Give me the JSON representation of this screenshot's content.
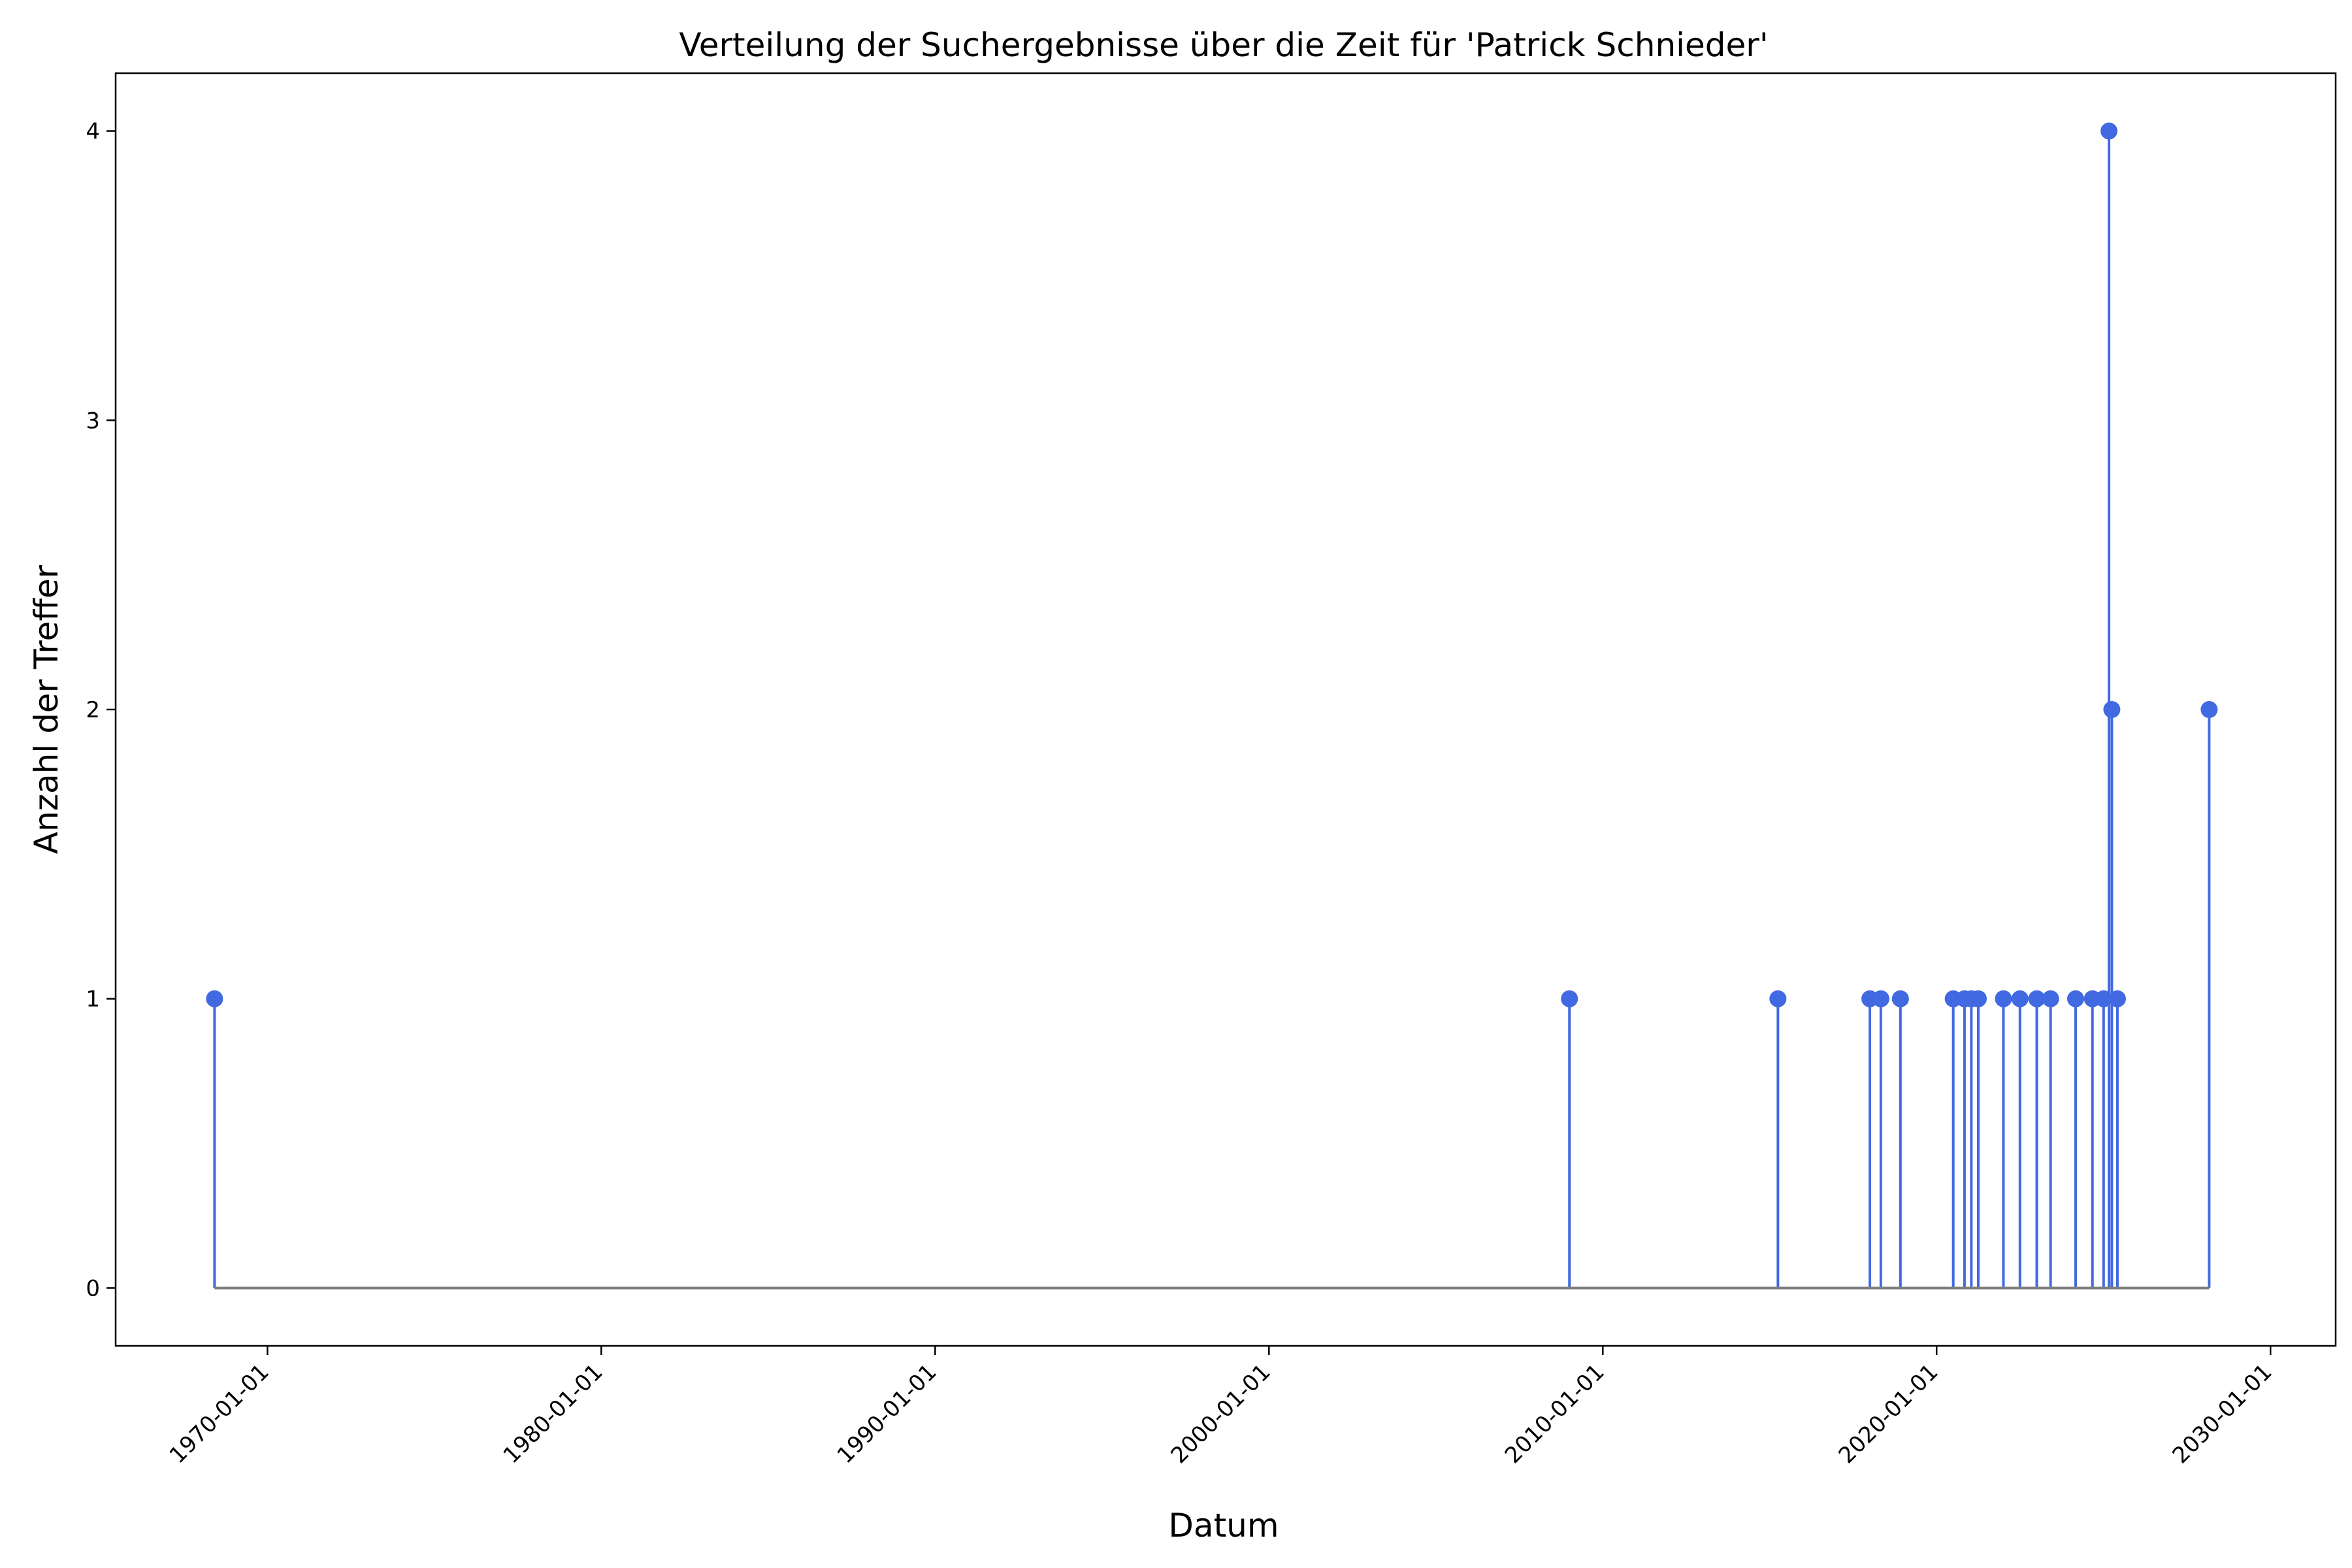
{
  "chart_data": {
    "type": "stem",
    "title": "Verteilung der Suchergebnisse über die Zeit für 'Patrick Schnieder'",
    "xlabel": "Datum",
    "ylabel": "Anzahl der Treffer",
    "x_ticks": [
      "1970-01-01",
      "1980-01-01",
      "1990-01-01",
      "2000-01-01",
      "2010-01-01",
      "2020-01-01",
      "2030-01-01"
    ],
    "y_ticks": [
      0,
      1,
      2,
      3,
      4
    ],
    "xlim": [
      "1965-06-15",
      "2031-12-15"
    ],
    "ylim": [
      -0.2,
      4.2
    ],
    "grid": false,
    "legend": "none",
    "baseline": 0,
    "colors": {
      "stem": "#4169e1",
      "marker": "#4169e1",
      "baseline": "#808080"
    },
    "points": [
      {
        "x": "1968-06-01",
        "y": 1
      },
      {
        "x": "2009-01-01",
        "y": 1
      },
      {
        "x": "2015-04-01",
        "y": 1
      },
      {
        "x": "2018-01-01",
        "y": 1
      },
      {
        "x": "2018-05-01",
        "y": 1
      },
      {
        "x": "2018-12-01",
        "y": 1
      },
      {
        "x": "2020-07-01",
        "y": 1
      },
      {
        "x": "2020-11-01",
        "y": 1
      },
      {
        "x": "2021-01-15",
        "y": 1
      },
      {
        "x": "2021-04-01",
        "y": 1
      },
      {
        "x": "2022-01-01",
        "y": 1
      },
      {
        "x": "2022-07-01",
        "y": 1
      },
      {
        "x": "2023-01-01",
        "y": 1
      },
      {
        "x": "2023-06-01",
        "y": 1
      },
      {
        "x": "2024-03-01",
        "y": 1
      },
      {
        "x": "2024-09-01",
        "y": 1
      },
      {
        "x": "2025-01-01",
        "y": 1
      },
      {
        "x": "2025-03-01",
        "y": 4
      },
      {
        "x": "2025-04-01",
        "y": 2
      },
      {
        "x": "2025-06-01",
        "y": 1
      },
      {
        "x": "2028-03-01",
        "y": 2
      }
    ]
  }
}
